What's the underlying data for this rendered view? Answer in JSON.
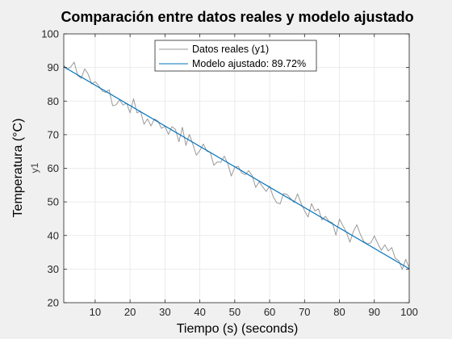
{
  "chart_data": {
    "type": "line",
    "title": "Comparación entre datos reales y modelo ajustado",
    "xlabel": "Tiempo (s) (seconds)",
    "ylabel": "Temperatura (°C)",
    "inner_ylabel": "y1",
    "xlim": [
      1,
      100
    ],
    "ylim": [
      20,
      100
    ],
    "xticks": [
      10,
      20,
      30,
      40,
      50,
      60,
      70,
      80,
      90,
      100
    ],
    "yticks": [
      20,
      30,
      40,
      50,
      60,
      70,
      80,
      90,
      100
    ],
    "grid": true,
    "legend_position": "top-center",
    "colors": {
      "measured": "#9a9a9a",
      "model": "#0072bd"
    },
    "series": [
      {
        "name": "Datos reales (y1)",
        "color": "#9a9a9a",
        "x": [
          1,
          2,
          3,
          4,
          5,
          6,
          7,
          8,
          9,
          10,
          11,
          12,
          13,
          14,
          15,
          16,
          17,
          18,
          19,
          20,
          21,
          22,
          23,
          24,
          25,
          26,
          27,
          28,
          29,
          30,
          31,
          32,
          33,
          34,
          35,
          36,
          37,
          38,
          39,
          40,
          41,
          42,
          43,
          44,
          45,
          46,
          47,
          48,
          49,
          50,
          51,
          52,
          53,
          54,
          55,
          56,
          57,
          58,
          59,
          60,
          61,
          62,
          63,
          64,
          65,
          66,
          67,
          68,
          69,
          70,
          71,
          72,
          73,
          74,
          75,
          76,
          77,
          78,
          79,
          80,
          81,
          82,
          83,
          84,
          85,
          86,
          87,
          88,
          89,
          90,
          91,
          92,
          93,
          94,
          95,
          96,
          97,
          98,
          99,
          100
        ],
        "values": [
          90.6,
          89.5,
          90.2,
          91.6,
          87.6,
          86.8,
          89.6,
          88.0,
          85.1,
          85.8,
          84.6,
          83.0,
          82.6,
          83.4,
          78.6,
          78.9,
          80.4,
          78.8,
          79.4,
          76.5,
          80.7,
          76.5,
          77.0,
          73.1,
          74.7,
          72.6,
          74.7,
          74.0,
          71.9,
          72.5,
          70.1,
          72.4,
          71.6,
          67.9,
          72.2,
          66.8,
          70.1,
          67.1,
          63.9,
          65.3,
          67.2,
          65.1,
          64.7,
          60.9,
          61.9,
          61.8,
          63.6,
          61.4,
          57.7,
          60.3,
          60.6,
          58.6,
          58.1,
          59.3,
          57.8,
          54.3,
          56.0,
          54.5,
          53.1,
          54.7,
          51.6,
          49.8,
          49.4,
          52.5,
          52.2,
          51.0,
          49.8,
          52.4,
          49.6,
          47.4,
          45.5,
          49.5,
          47.3,
          47.9,
          44.6,
          45.7,
          44.2,
          43.8,
          40.1,
          44.9,
          42.9,
          41.0,
          38.0,
          41.2,
          43.2,
          40.3,
          38.2,
          37.5,
          37.8,
          39.9,
          37.6,
          35.6,
          37.2,
          35.4,
          36.4,
          33.2,
          32.5,
          29.9,
          32.9,
          30.4
        ]
      },
      {
        "name": "Modelo ajustado: 89.72%",
        "color": "#0072bd",
        "x": [
          1,
          100
        ],
        "values": [
          90.2,
          30.1
        ]
      }
    ]
  }
}
